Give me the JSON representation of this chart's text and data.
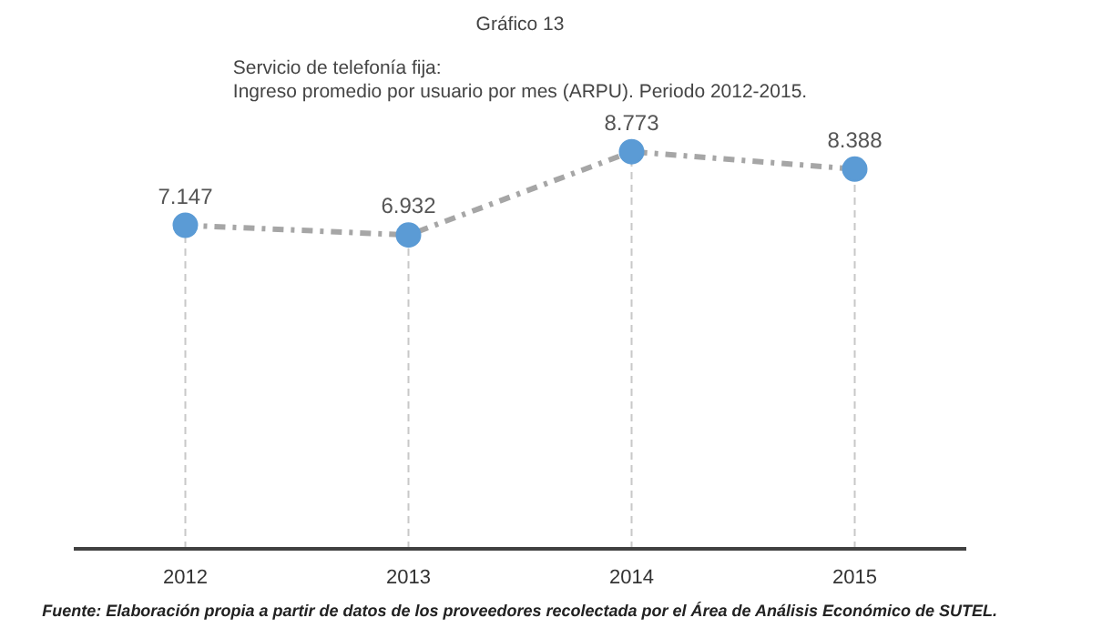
{
  "chart_data": {
    "type": "line",
    "title": "Gráfico 13",
    "subtitle": "Servicio de telefonía fija:\nIngreso promedio por usuario por mes (ARPU). Periodo 2012-2015.",
    "categories": [
      "2012",
      "2013",
      "2014",
      "2015"
    ],
    "series": [
      {
        "color": "#a6a6a6",
        "colors": [
          "#5b9bd5",
          "#5b9bd5",
          "#5b9bd5",
          "#5b9bd5"
        ],
        "values": [
          7.147,
          6.932,
          8.773,
          8.388
        ]
      }
    ],
    "data_labels": true,
    "line_style": "dashdot",
    "marker": "circle",
    "tick_labels": "x",
    "grid": "x",
    "annotations": [
      "Fuente: Elaboración propia a partir de datos de los proveedores recolectada por el Área de Análisis Económico de SUTEL."
    ]
  }
}
